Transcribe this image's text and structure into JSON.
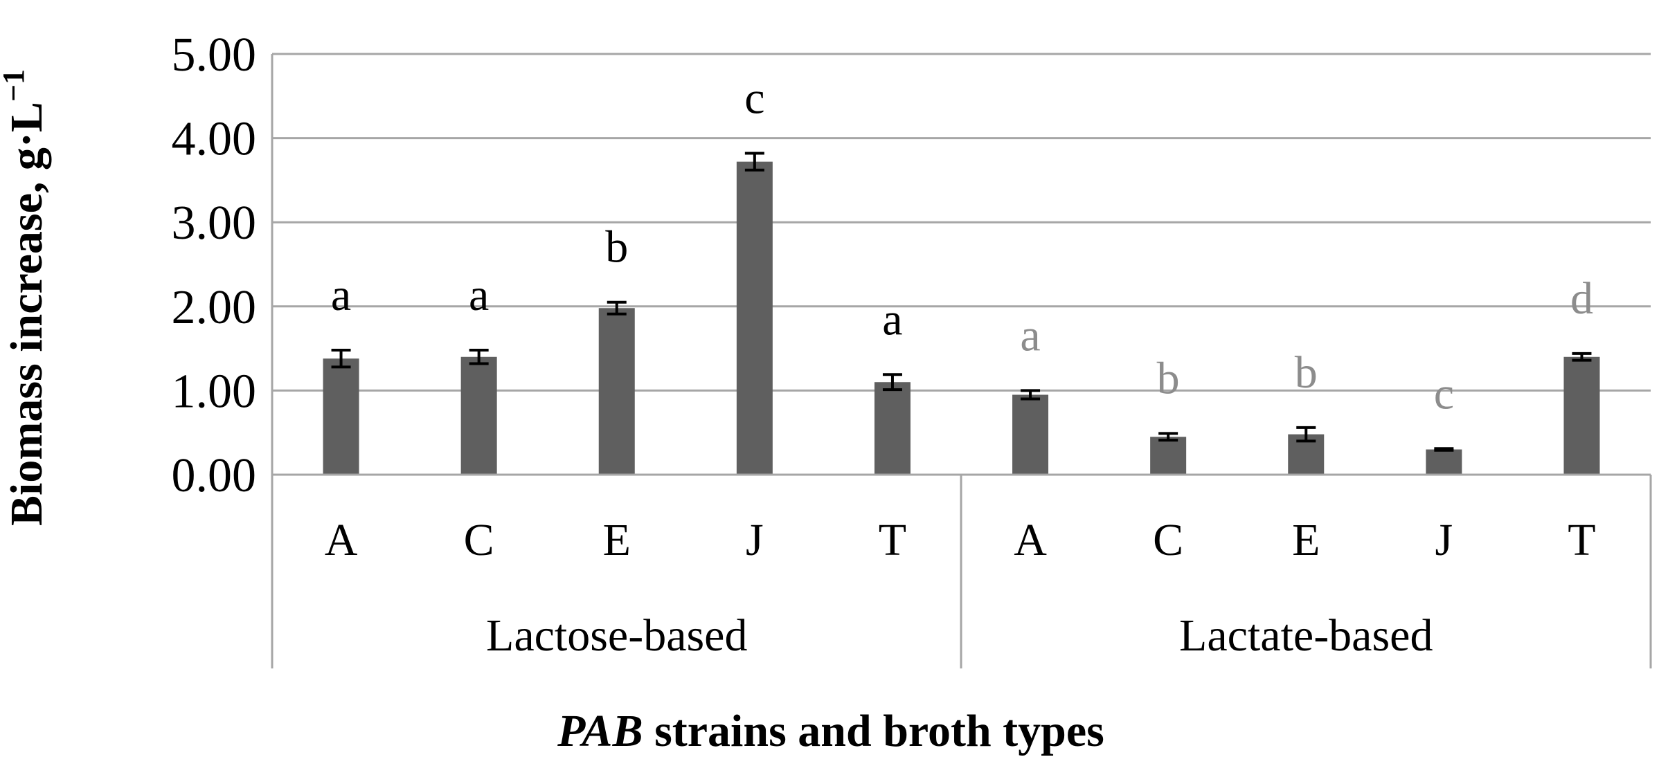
{
  "chart_data": {
    "type": "bar",
    "ylabel": "Biomass increase, g·L",
    "ylabel_superscript": "−1",
    "xlabel_italic": "PAB",
    "xlabel_rest": " strains and broth types",
    "ylim": [
      0,
      5
    ],
    "yticks": [
      "0.00",
      "1.00",
      "2.00",
      "3.00",
      "4.00",
      "5.00"
    ],
    "grid": "horizontal",
    "colors": {
      "bar": "#5f5f5f",
      "grid": "#a6a6a6",
      "sig_lactose": "#000000",
      "sig_lactate": "#8c8c8c"
    },
    "groups": [
      {
        "name": "Lactose-based",
        "bars": [
          {
            "category": "A",
            "value": 1.38,
            "error": 0.1,
            "sig": "a"
          },
          {
            "category": "C",
            "value": 1.4,
            "error": 0.08,
            "sig": "a"
          },
          {
            "category": "E",
            "value": 1.98,
            "error": 0.07,
            "sig": "b"
          },
          {
            "category": "J",
            "value": 3.72,
            "error": 0.1,
            "sig": "c"
          },
          {
            "category": "T",
            "value": 1.1,
            "error": 0.09,
            "sig": "a"
          }
        ]
      },
      {
        "name": "Lactate-based",
        "bars": [
          {
            "category": "A",
            "value": 0.95,
            "error": 0.05,
            "sig": "a"
          },
          {
            "category": "C",
            "value": 0.45,
            "error": 0.04,
            "sig": "b"
          },
          {
            "category": "E",
            "value": 0.48,
            "error": 0.08,
            "sig": "b"
          },
          {
            "category": "J",
            "value": 0.3,
            "error": 0.01,
            "sig": "c"
          },
          {
            "category": "T",
            "value": 1.4,
            "error": 0.04,
            "sig": "d"
          }
        ]
      }
    ]
  }
}
